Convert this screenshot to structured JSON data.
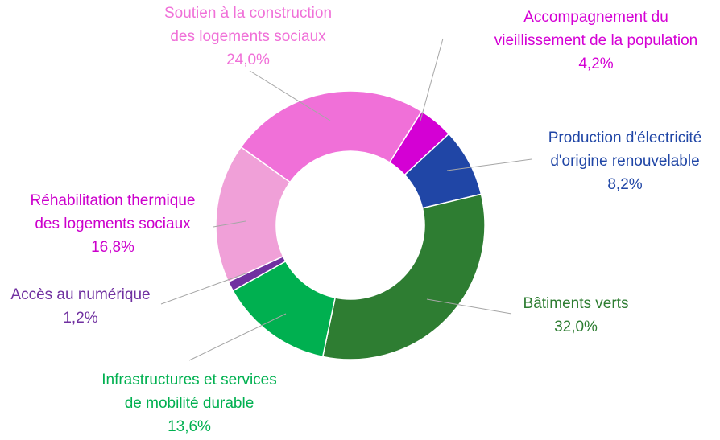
{
  "chart_data": {
    "type": "donut",
    "categories": [
      [
        "Accompagnement du",
        "vieillissement de la population"
      ],
      [
        "Production d'électricité",
        "d'origine renouvelable"
      ],
      [
        "Bâtiments verts"
      ],
      [
        "Infrastructures et services",
        "de mobilité durable"
      ],
      [
        "Accès au numérique"
      ],
      [
        "Réhabilitation thermique",
        "des logements sociaux"
      ],
      [
        "Soutien à la construction",
        "des logements sociaux"
      ]
    ],
    "values": [
      4.2,
      8.2,
      32.0,
      13.6,
      1.2,
      16.8,
      24.0
    ],
    "value_labels": [
      "4,2%",
      "8,2%",
      "32,0%",
      "13,6%",
      "1,2%",
      "16,8%",
      "24,0%"
    ],
    "colors": [
      "#d400d4",
      "#2046a6",
      "#2e7d32",
      "#00b050",
      "#7030a0",
      "#f0a0d8",
      "#f070d8"
    ],
    "label_colors": [
      "#d400d4",
      "#2046a6",
      "#2e7d32",
      "#00b050",
      "#7030a0",
      "#cc00cc",
      "#f070d8"
    ]
  }
}
